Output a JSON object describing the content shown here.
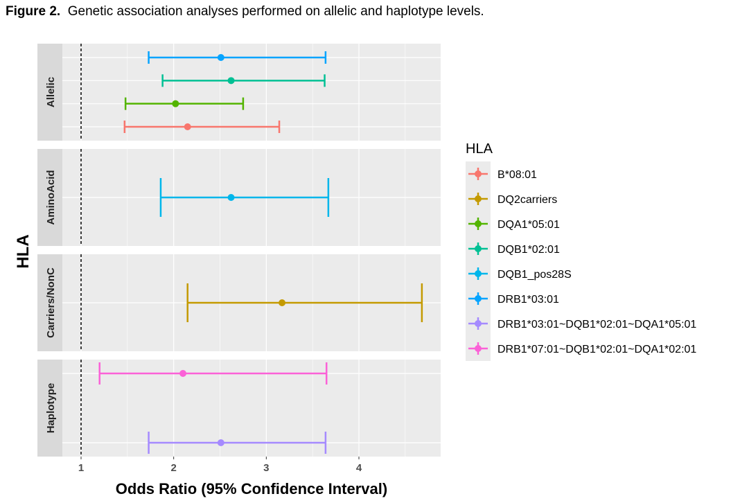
{
  "caption": {
    "label": "Figure 2.",
    "text": "Genetic association analyses performed on allelic and haplotype levels."
  },
  "chart_data": {
    "type": "forest",
    "xlabel": "Odds Ratio (95% Confidence Interval)",
    "ylabel": "HLA",
    "xlim": [
      0.5,
      4.85
    ],
    "xticks": [
      1,
      2,
      3,
      4
    ],
    "reference_line": 1,
    "grid": true,
    "legend": {
      "title": "HLA",
      "position": "right",
      "entries": [
        {
          "name": "B*08:01",
          "color": "#F8766D"
        },
        {
          "name": "DQ2carriers",
          "color": "#C49A00"
        },
        {
          "name": "DQA1*05:01",
          "color": "#53B400"
        },
        {
          "name": "DQB1*02:01",
          "color": "#00C094"
        },
        {
          "name": "DQB1_pos28S",
          "color": "#00B6EB"
        },
        {
          "name": "DRB1*03:01",
          "color": "#06A4FF"
        },
        {
          "name": "DRB1*03:01~DQB1*02:01~DQA1*05:01",
          "color": "#A58AFF"
        },
        {
          "name": "DRB1*07:01~DQB1*02:01~DQA1*02:01",
          "color": "#FB61D7"
        }
      ]
    },
    "facets": [
      {
        "label": "Allelic",
        "rows": [
          {
            "series": "DRB1*03:01",
            "or": 2.51,
            "lower": 1.73,
            "upper": 3.64
          },
          {
            "series": "DQB1*02:01",
            "or": 2.62,
            "lower": 1.88,
            "upper": 3.63
          },
          {
            "series": "DQA1*05:01",
            "or": 2.02,
            "lower": 1.48,
            "upper": 2.75
          },
          {
            "series": "B*08:01",
            "or": 2.15,
            "lower": 1.47,
            "upper": 3.14
          }
        ]
      },
      {
        "label": "AminoAcid",
        "rows": [
          {
            "series": "DQB1_pos28S",
            "or": 2.62,
            "lower": 1.86,
            "upper": 3.67
          }
        ]
      },
      {
        "label": "Carriers/NonC",
        "rows": [
          {
            "series": "DQ2carriers",
            "or": 3.17,
            "lower": 2.15,
            "upper": 4.68
          }
        ]
      },
      {
        "label": "Haplotype",
        "rows": [
          {
            "series": "DRB1*07:01~DQB1*02:01~DQA1*02:01",
            "or": 2.1,
            "lower": 1.2,
            "upper": 3.65
          },
          {
            "series": "DRB1*03:01~DQB1*02:01~DQA1*05:01",
            "or": 2.51,
            "lower": 1.73,
            "upper": 3.64
          }
        ]
      }
    ]
  }
}
